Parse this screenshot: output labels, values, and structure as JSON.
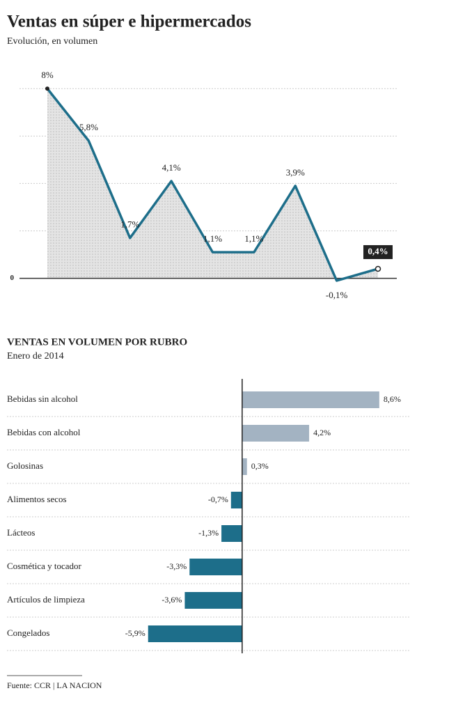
{
  "title": "Ventas en súper e hipermercados",
  "subtitle": "Evolución, en volumen",
  "source": "Fuente: CCR | LA NACION",
  "chart_data": [
    {
      "type": "area",
      "values": [
        8,
        5.8,
        1.7,
        4.1,
        1.1,
        1.1,
        3.9,
        -0.1,
        0.4
      ],
      "value_labels": [
        "8%",
        "5,8%",
        "1,7%",
        "4,1%",
        "1,1%",
        "1,1%",
        "3,9%",
        "-0,1%",
        "0,4%"
      ],
      "color": "#1d6e8a",
      "ylim": [
        -0.6,
        8.8
      ],
      "yticks": [
        0
      ],
      "gridlines": [
        2,
        4,
        6,
        8
      ]
    },
    {
      "type": "hbar",
      "title": "VENTAS EN VOLUMEN POR RUBRO",
      "subtitle": "Enero de 2014",
      "categories": [
        "Bebidas sin alcohol",
        "Bebidas con alcohol",
        "Golosinas",
        "Alimentos secos",
        "Lácteos",
        "Cosmética y tocador",
        "Artículos de limpieza",
        "Congelados"
      ],
      "values": [
        8.6,
        4.2,
        0.3,
        -0.7,
        -1.3,
        -3.3,
        -3.6,
        -5.9
      ],
      "value_labels": [
        "8,6%",
        "4,2%",
        "0,3%",
        "-0,7%",
        "-1,3%",
        "-3,3%",
        "-3,6%",
        "-5,9%"
      ],
      "colors": [
        "#a3b3c2",
        "#a3b3c2",
        "#a3b3c2",
        "#1d6e8a",
        "#1d6e8a",
        "#1d6e8a",
        "#1d6e8a",
        "#1d6e8a"
      ],
      "xlim": [
        -6.5,
        9
      ]
    }
  ]
}
